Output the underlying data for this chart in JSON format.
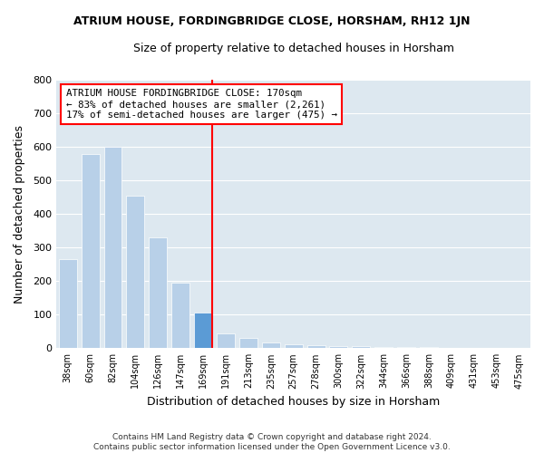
{
  "title": "ATRIUM HOUSE, FORDINGBRIDGE CLOSE, HORSHAM, RH12 1JN",
  "subtitle": "Size of property relative to detached houses in Horsham",
  "xlabel": "Distribution of detached houses by size in Horsham",
  "ylabel": "Number of detached properties",
  "categories": [
    "38sqm",
    "60sqm",
    "82sqm",
    "104sqm",
    "126sqm",
    "147sqm",
    "169sqm",
    "191sqm",
    "213sqm",
    "235sqm",
    "257sqm",
    "278sqm",
    "300sqm",
    "322sqm",
    "344sqm",
    "366sqm",
    "388sqm",
    "409sqm",
    "431sqm",
    "453sqm",
    "475sqm"
  ],
  "values": [
    265,
    580,
    600,
    455,
    330,
    195,
    105,
    45,
    30,
    18,
    12,
    8,
    6,
    5,
    4,
    3,
    3,
    2,
    2,
    1,
    1
  ],
  "bar_color_light": "#b8d0e8",
  "bar_color_highlight": "#5b9bd5",
  "highlight_index": 6,
  "annotation_title": "ATRIUM HOUSE FORDINGBRIDGE CLOSE: 170sqm",
  "annotation_line1": "← 83% of detached houses are smaller (2,261)",
  "annotation_line2": "17% of semi-detached houses are larger (475) →",
  "footnote1": "Contains HM Land Registry data © Crown copyright and database right 2024.",
  "footnote2": "Contains public sector information licensed under the Open Government Licence v3.0.",
  "ylim": [
    0,
    800
  ],
  "yticks": [
    0,
    100,
    200,
    300,
    400,
    500,
    600,
    700,
    800
  ],
  "bar_bg_color": "#dde8f0"
}
